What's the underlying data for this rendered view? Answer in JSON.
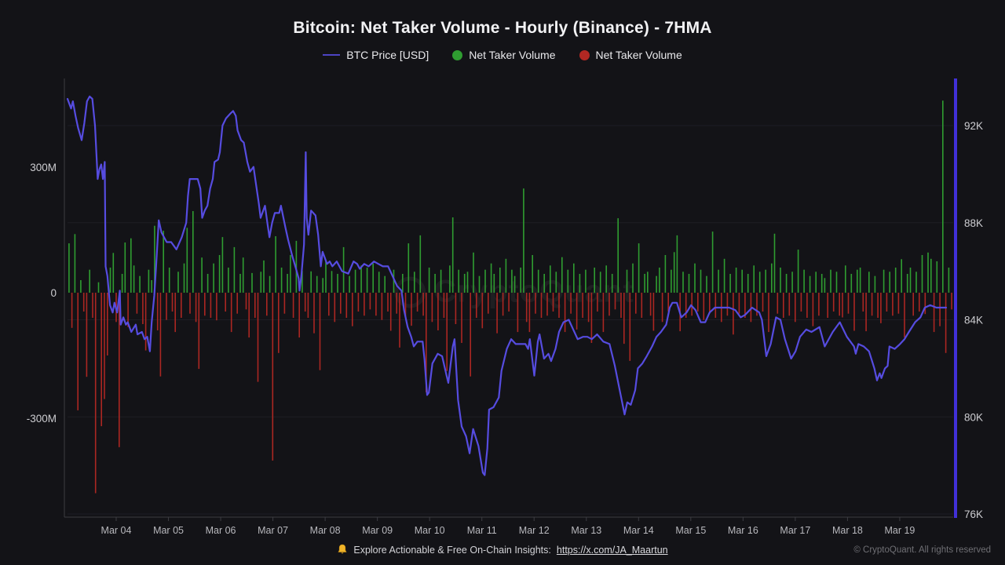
{
  "title": "Bitcoin: Net Taker Volume - Hourly (Binance) - 7HMA",
  "legend": {
    "price": {
      "label": "BTC Price [USD]",
      "marker": "line-swatch",
      "color": "#4d44c4"
    },
    "taker_buy": {
      "label": "Net Taker Volume",
      "marker": "dot",
      "color": "#2f9d31"
    },
    "taker_sell": {
      "label": "Net Taker Volume",
      "marker": "dot",
      "color": "#b22823"
    }
  },
  "watermark": "CryptoQuant",
  "footer": {
    "bell_icon": "bell-icon",
    "promo_prefix": "Explore Actionable & Free On-Chain Insights: ",
    "promo_link": "https://x.com/JA_Maartun",
    "copyright": "© CryptoQuant. All rights reserved"
  },
  "colors": {
    "background": "#131317",
    "price_line": "#564ce0",
    "right_spine": "#4130d8",
    "bar_positive": "#2f9d31",
    "bar_negative": "#ab2722",
    "gridline": "#1e1e24",
    "spine": "#3c3c42",
    "tick_text": "#cdcdd1",
    "date_text": "#b8b8bd"
  },
  "chart_data": {
    "type": "bar+line",
    "title": "Bitcoin: Net Taker Volume - Hourly (Binance) - 7HMA",
    "grid": "horizontal-faint",
    "legend_position": "top-center",
    "x_axis": {
      "tick_labels": [
        "Mar 04",
        "Mar 05",
        "Mar 06",
        "Mar 07",
        "Mar 08",
        "Mar 09",
        "Mar 10",
        "Mar 11",
        "Mar 12",
        "Mar 13",
        "Mar 14",
        "Mar 15",
        "Mar 16",
        "Mar 17",
        "Mar 18",
        "Mar 19"
      ],
      "range": "Mar 03 - Mar 20"
    },
    "left_axis": {
      "series": "Net Taker Volume (7HMA)",
      "tick_labels": [
        "300M",
        "0",
        "-300M"
      ],
      "tick_values_M": [
        300,
        0,
        -300
      ],
      "range_M": [
        -512,
        512
      ]
    },
    "right_axis": {
      "series": "BTC Price [USD]",
      "tick_labels": [
        "92K",
        "88K",
        "84K",
        "80K",
        "76K"
      ],
      "tick_values_K": [
        92,
        88,
        84,
        80,
        76
      ],
      "range_K": [
        75.8,
        93.9
      ]
    },
    "bars_unit": "millions USD, hourly net taker volume (positive=green buy dominant, negative=red sell dominant), evenly spaced Mar 03-Mar 20",
    "bars_M": [
      118,
      -84,
      140,
      -281,
      30,
      -45,
      -201,
      55,
      -60,
      -479,
      25,
      -319,
      -254,
      -150,
      60,
      95,
      -70,
      -369,
      45,
      120,
      -82,
      130,
      65,
      -50,
      40,
      -75,
      -138,
      55,
      30,
      160,
      -90,
      -200,
      148,
      -65,
      60,
      -45,
      -94,
      50,
      -60,
      70,
      155,
      -50,
      195,
      -70,
      -182,
      84,
      -55,
      45,
      -60,
      70,
      -66,
      90,
      133,
      -45,
      60,
      -94,
      109,
      -50,
      45,
      84,
      -40,
      -107,
      47,
      -60,
      -213,
      50,
      77,
      -55,
      40,
      -401,
      135,
      -144,
      60,
      -50,
      45,
      90,
      -60,
      124,
      -107,
      52,
      -45,
      -60,
      51,
      -97,
      40,
      -185,
      35,
      75,
      -55,
      52,
      -70,
      45,
      -50,
      109,
      -60,
      40,
      -80,
      55,
      -45,
      65,
      -55,
      60,
      -40,
      70,
      -55,
      50,
      -65,
      40,
      -45,
      -91,
      55,
      -50,
      -131,
      45,
      -60,
      118,
      -79,
      50,
      -45,
      137,
      -55,
      -238,
      60,
      -70,
      45,
      -90,
      55,
      -60,
      -187,
      65,
      180,
      -75,
      55,
      -120,
      45,
      50,
      -200,
      96,
      -60,
      40,
      -85,
      55,
      -50,
      70,
      45,
      -97,
      60,
      -55,
      81,
      -45,
      55,
      40,
      -94,
      60,
      249,
      -70,
      -94,
      90,
      -50,
      55,
      -60,
      45,
      -55,
      65,
      -45,
      50,
      -60,
      85,
      -94,
      55,
      -50,
      70,
      -88,
      45,
      -60,
      55,
      -70,
      -120,
      60,
      -45,
      50,
      -94,
      65,
      -55,
      45,
      -40,
      178,
      -60,
      -122,
      55,
      -163,
      70,
      -50,
      118,
      -60,
      45,
      50,
      -55,
      -91,
      40,
      60,
      -70,
      90,
      -45,
      55,
      97,
      137,
      -92,
      50,
      -60,
      45,
      -55,
      70,
      -45,
      55,
      -65,
      40,
      -50,
      146,
      -60,
      55,
      -70,
      81,
      -55,
      45,
      -100,
      60,
      -50,
      55,
      -60,
      45,
      -70,
      65,
      -55,
      50,
      -45,
      55,
      -94,
      70,
      141,
      -50,
      60,
      -60,
      45,
      -55,
      50,
      -70,
      103,
      -45,
      55,
      -60,
      40,
      -80,
      50,
      -55,
      45,
      35,
      -60,
      55,
      -45,
      50,
      -55,
      -59,
      65,
      -50,
      45,
      -91,
      55,
      60,
      -45,
      -92,
      50,
      -55,
      40,
      -60,
      -73,
      55,
      -45,
      50,
      -55,
      60,
      -50,
      80,
      -107,
      45,
      60,
      -55,
      50,
      -45,
      90,
      -51,
      96,
      81,
      -94,
      75,
      -80,
      459,
      -144,
      60,
      -40
    ],
    "price_unit": "thousand USD; x = fraction of time range Mar 03 - Mar 20",
    "price_line_K": [
      [
        0.0,
        93.1
      ],
      [
        0.004,
        92.7
      ],
      [
        0.006,
        93.0
      ],
      [
        0.009,
        92.4
      ],
      [
        0.012,
        91.9
      ],
      [
        0.016,
        91.4
      ],
      [
        0.019,
        92.1
      ],
      [
        0.022,
        93.0
      ],
      [
        0.025,
        93.2
      ],
      [
        0.028,
        93.1
      ],
      [
        0.031,
        92.0
      ],
      [
        0.034,
        89.8
      ],
      [
        0.036,
        90.2
      ],
      [
        0.038,
        90.4
      ],
      [
        0.04,
        89.8
      ],
      [
        0.042,
        90.5
      ],
      [
        0.043,
        86.2
      ],
      [
        0.045,
        85.8
      ],
      [
        0.048,
        84.6
      ],
      [
        0.051,
        84.3
      ],
      [
        0.053,
        84.7
      ],
      [
        0.056,
        84.3
      ],
      [
        0.059,
        85.2
      ],
      [
        0.06,
        83.8
      ],
      [
        0.063,
        84.1
      ],
      [
        0.066,
        83.8
      ],
      [
        0.068,
        83.9
      ],
      [
        0.072,
        83.5
      ],
      [
        0.077,
        83.8
      ],
      [
        0.079,
        83.4
      ],
      [
        0.084,
        83.5
      ],
      [
        0.087,
        83.2
      ],
      [
        0.09,
        83.3
      ],
      [
        0.093,
        82.7
      ],
      [
        0.095,
        83.9
      ],
      [
        0.098,
        85.0
      ],
      [
        0.1,
        86.2
      ],
      [
        0.103,
        88.1
      ],
      [
        0.106,
        87.6
      ],
      [
        0.112,
        87.2
      ],
      [
        0.117,
        87.2
      ],
      [
        0.123,
        86.9
      ],
      [
        0.129,
        87.4
      ],
      [
        0.134,
        88.0
      ],
      [
        0.136,
        89.1
      ],
      [
        0.138,
        89.8
      ],
      [
        0.144,
        89.8
      ],
      [
        0.147,
        89.8
      ],
      [
        0.15,
        89.4
      ],
      [
        0.152,
        88.2
      ],
      [
        0.155,
        88.5
      ],
      [
        0.158,
        88.7
      ],
      [
        0.161,
        89.4
      ],
      [
        0.164,
        89.8
      ],
      [
        0.166,
        90.5
      ],
      [
        0.17,
        90.6
      ],
      [
        0.172,
        90.9
      ],
      [
        0.175,
        92.0
      ],
      [
        0.179,
        92.3
      ],
      [
        0.184,
        92.5
      ],
      [
        0.187,
        92.6
      ],
      [
        0.19,
        92.4
      ],
      [
        0.192,
        91.8
      ],
      [
        0.196,
        91.4
      ],
      [
        0.199,
        91.3
      ],
      [
        0.203,
        90.5
      ],
      [
        0.206,
        90.1
      ],
      [
        0.21,
        90.3
      ],
      [
        0.212,
        89.8
      ],
      [
        0.216,
        88.8
      ],
      [
        0.218,
        88.2
      ],
      [
        0.223,
        88.7
      ],
      [
        0.226,
        87.9
      ],
      [
        0.228,
        87.4
      ],
      [
        0.231,
        88.0
      ],
      [
        0.234,
        88.4
      ],
      [
        0.239,
        88.4
      ],
      [
        0.241,
        88.7
      ],
      [
        0.246,
        87.8
      ],
      [
        0.249,
        87.3
      ],
      [
        0.254,
        86.6
      ],
      [
        0.258,
        86.1
      ],
      [
        0.261,
        85.7
      ],
      [
        0.262,
        85.2
      ],
      [
        0.264,
        85.8
      ],
      [
        0.267,
        87.1
      ],
      [
        0.269,
        90.9
      ],
      [
        0.27,
        88.2
      ],
      [
        0.272,
        87.5
      ],
      [
        0.275,
        88.5
      ],
      [
        0.28,
        88.3
      ],
      [
        0.283,
        87.5
      ],
      [
        0.286,
        86.2
      ],
      [
        0.288,
        86.8
      ],
      [
        0.293,
        86.3
      ],
      [
        0.296,
        86.4
      ],
      [
        0.299,
        86.2
      ],
      [
        0.304,
        86.4
      ],
      [
        0.31,
        86.0
      ],
      [
        0.317,
        85.9
      ],
      [
        0.323,
        86.4
      ],
      [
        0.327,
        86.3
      ],
      [
        0.33,
        86.1
      ],
      [
        0.335,
        86.3
      ],
      [
        0.34,
        86.2
      ],
      [
        0.346,
        86.4
      ],
      [
        0.351,
        86.3
      ],
      [
        0.356,
        86.2
      ],
      [
        0.362,
        86.2
      ],
      [
        0.367,
        85.8
      ],
      [
        0.372,
        85.4
      ],
      [
        0.377,
        85.2
      ],
      [
        0.38,
        84.4
      ],
      [
        0.384,
        83.7
      ],
      [
        0.388,
        83.3
      ],
      [
        0.391,
        82.9
      ],
      [
        0.395,
        83.1
      ],
      [
        0.401,
        83.1
      ],
      [
        0.403,
        82.4
      ],
      [
        0.406,
        80.9
      ],
      [
        0.408,
        81.0
      ],
      [
        0.412,
        82.2
      ],
      [
        0.418,
        82.6
      ],
      [
        0.423,
        82.5
      ],
      [
        0.428,
        81.7
      ],
      [
        0.43,
        81.4
      ],
      [
        0.435,
        82.9
      ],
      [
        0.437,
        83.2
      ],
      [
        0.441,
        80.7
      ],
      [
        0.445,
        79.6
      ],
      [
        0.45,
        79.2
      ],
      [
        0.454,
        78.5
      ],
      [
        0.458,
        79.5
      ],
      [
        0.464,
        78.8
      ],
      [
        0.469,
        77.7
      ],
      [
        0.471,
        77.6
      ],
      [
        0.474,
        78.7
      ],
      [
        0.476,
        80.3
      ],
      [
        0.481,
        80.4
      ],
      [
        0.487,
        80.8
      ],
      [
        0.49,
        81.9
      ],
      [
        0.496,
        82.8
      ],
      [
        0.501,
        83.2
      ],
      [
        0.506,
        83.0
      ],
      [
        0.512,
        83.0
      ],
      [
        0.517,
        83.0
      ],
      [
        0.52,
        82.8
      ],
      [
        0.522,
        83.2
      ],
      [
        0.527,
        81.7
      ],
      [
        0.531,
        83.1
      ],
      [
        0.533,
        83.4
      ],
      [
        0.538,
        82.4
      ],
      [
        0.543,
        82.6
      ],
      [
        0.546,
        82.3
      ],
      [
        0.551,
        82.8
      ],
      [
        0.555,
        83.5
      ],
      [
        0.56,
        83.9
      ],
      [
        0.566,
        84.0
      ],
      [
        0.571,
        83.6
      ],
      [
        0.576,
        83.2
      ],
      [
        0.582,
        83.3
      ],
      [
        0.587,
        83.3
      ],
      [
        0.592,
        83.2
      ],
      [
        0.598,
        83.4
      ],
      [
        0.605,
        83.1
      ],
      [
        0.612,
        83.0
      ],
      [
        0.618,
        82.1
      ],
      [
        0.624,
        81.0
      ],
      [
        0.629,
        80.1
      ],
      [
        0.632,
        80.6
      ],
      [
        0.636,
        80.5
      ],
      [
        0.641,
        81.1
      ],
      [
        0.644,
        82.0
      ],
      [
        0.649,
        82.2
      ],
      [
        0.654,
        82.5
      ],
      [
        0.66,
        82.9
      ],
      [
        0.665,
        83.3
      ],
      [
        0.67,
        83.5
      ],
      [
        0.676,
        83.8
      ],
      [
        0.68,
        84.5
      ],
      [
        0.683,
        84.7
      ],
      [
        0.688,
        84.7
      ],
      [
        0.693,
        84.1
      ],
      [
        0.699,
        84.3
      ],
      [
        0.704,
        84.6
      ],
      [
        0.709,
        84.4
      ],
      [
        0.715,
        83.9
      ],
      [
        0.72,
        83.9
      ],
      [
        0.725,
        84.3
      ],
      [
        0.731,
        84.5
      ],
      [
        0.739,
        84.5
      ],
      [
        0.747,
        84.5
      ],
      [
        0.754,
        84.4
      ],
      [
        0.76,
        84.1
      ],
      [
        0.765,
        84.2
      ],
      [
        0.773,
        84.5
      ],
      [
        0.781,
        84.3
      ],
      [
        0.784,
        84.0
      ],
      [
        0.789,
        82.5
      ],
      [
        0.794,
        83.0
      ],
      [
        0.8,
        84.1
      ],
      [
        0.805,
        84.0
      ],
      [
        0.81,
        83.2
      ],
      [
        0.817,
        82.4
      ],
      [
        0.822,
        82.7
      ],
      [
        0.827,
        83.3
      ],
      [
        0.834,
        83.6
      ],
      [
        0.84,
        83.5
      ],
      [
        0.849,
        83.7
      ],
      [
        0.855,
        82.9
      ],
      [
        0.864,
        83.5
      ],
      [
        0.872,
        83.9
      ],
      [
        0.88,
        83.3
      ],
      [
        0.888,
        82.9
      ],
      [
        0.89,
        82.6
      ],
      [
        0.893,
        83.0
      ],
      [
        0.899,
        82.9
      ],
      [
        0.905,
        82.7
      ],
      [
        0.911,
        82.0
      ],
      [
        0.914,
        81.5
      ],
      [
        0.917,
        81.8
      ],
      [
        0.919,
        81.6
      ],
      [
        0.923,
        82.0
      ],
      [
        0.926,
        82.1
      ],
      [
        0.928,
        82.9
      ],
      [
        0.934,
        82.8
      ],
      [
        0.94,
        83.0
      ],
      [
        0.945,
        83.2
      ],
      [
        0.95,
        83.5
      ],
      [
        0.957,
        83.9
      ],
      [
        0.963,
        84.1
      ],
      [
        0.968,
        84.5
      ],
      [
        0.974,
        84.6
      ],
      [
        0.981,
        84.5
      ],
      [
        0.986,
        84.5
      ],
      [
        0.992,
        84.5
      ]
    ]
  }
}
